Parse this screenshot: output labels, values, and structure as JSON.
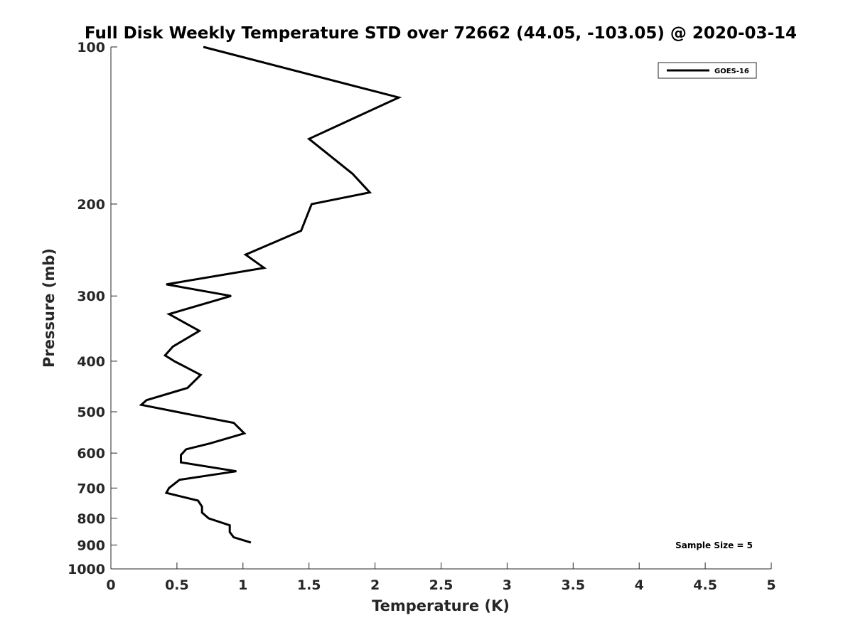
{
  "chart_data": {
    "type": "line",
    "title": "Full Disk Weekly Temperature STD over 72662 (44.05, -103.05) @ 2020-03-14",
    "xlabel": "Temperature (K)",
    "ylabel": "Pressure (mb)",
    "xlim": [
      0,
      5
    ],
    "ylim": [
      100,
      1000
    ],
    "y_scale": "log",
    "y_reversed": true,
    "grid": false,
    "legend_position": "top-right",
    "x_ticks": [
      "0",
      "0.5",
      "1",
      "1.5",
      "2",
      "2.5",
      "3",
      "3.5",
      "4",
      "4.5",
      "5"
    ],
    "y_ticks": [
      "100",
      "200",
      "300",
      "400",
      "500",
      "600",
      "700",
      "800",
      "900",
      "1000"
    ],
    "annotation": "Sample Size = 5",
    "series": [
      {
        "name": "GOES-16",
        "color": "#000000",
        "points": [
          [
            0.7,
            100
          ],
          [
            2.18,
            125
          ],
          [
            1.5,
            150
          ],
          [
            1.83,
            175
          ],
          [
            1.96,
            190
          ],
          [
            1.52,
            200
          ],
          [
            1.44,
            225
          ],
          [
            1.02,
            250
          ],
          [
            1.16,
            265
          ],
          [
            0.42,
            285
          ],
          [
            0.91,
            300
          ],
          [
            0.44,
            325
          ],
          [
            0.67,
            350
          ],
          [
            0.47,
            375
          ],
          [
            0.41,
            390
          ],
          [
            0.48,
            400
          ],
          [
            0.68,
            425
          ],
          [
            0.58,
            450
          ],
          [
            0.27,
            475
          ],
          [
            0.23,
            485
          ],
          [
            0.58,
            505
          ],
          [
            0.93,
            525
          ],
          [
            1.01,
            550
          ],
          [
            0.75,
            575
          ],
          [
            0.57,
            590
          ],
          [
            0.53,
            605
          ],
          [
            0.53,
            625
          ],
          [
            0.95,
            650
          ],
          [
            0.52,
            675
          ],
          [
            0.44,
            700
          ],
          [
            0.42,
            715
          ],
          [
            0.66,
            740
          ],
          [
            0.69,
            760
          ],
          [
            0.69,
            780
          ],
          [
            0.74,
            800
          ],
          [
            0.9,
            825
          ],
          [
            0.9,
            850
          ],
          [
            0.93,
            870
          ],
          [
            1.06,
            890
          ]
        ]
      }
    ]
  }
}
